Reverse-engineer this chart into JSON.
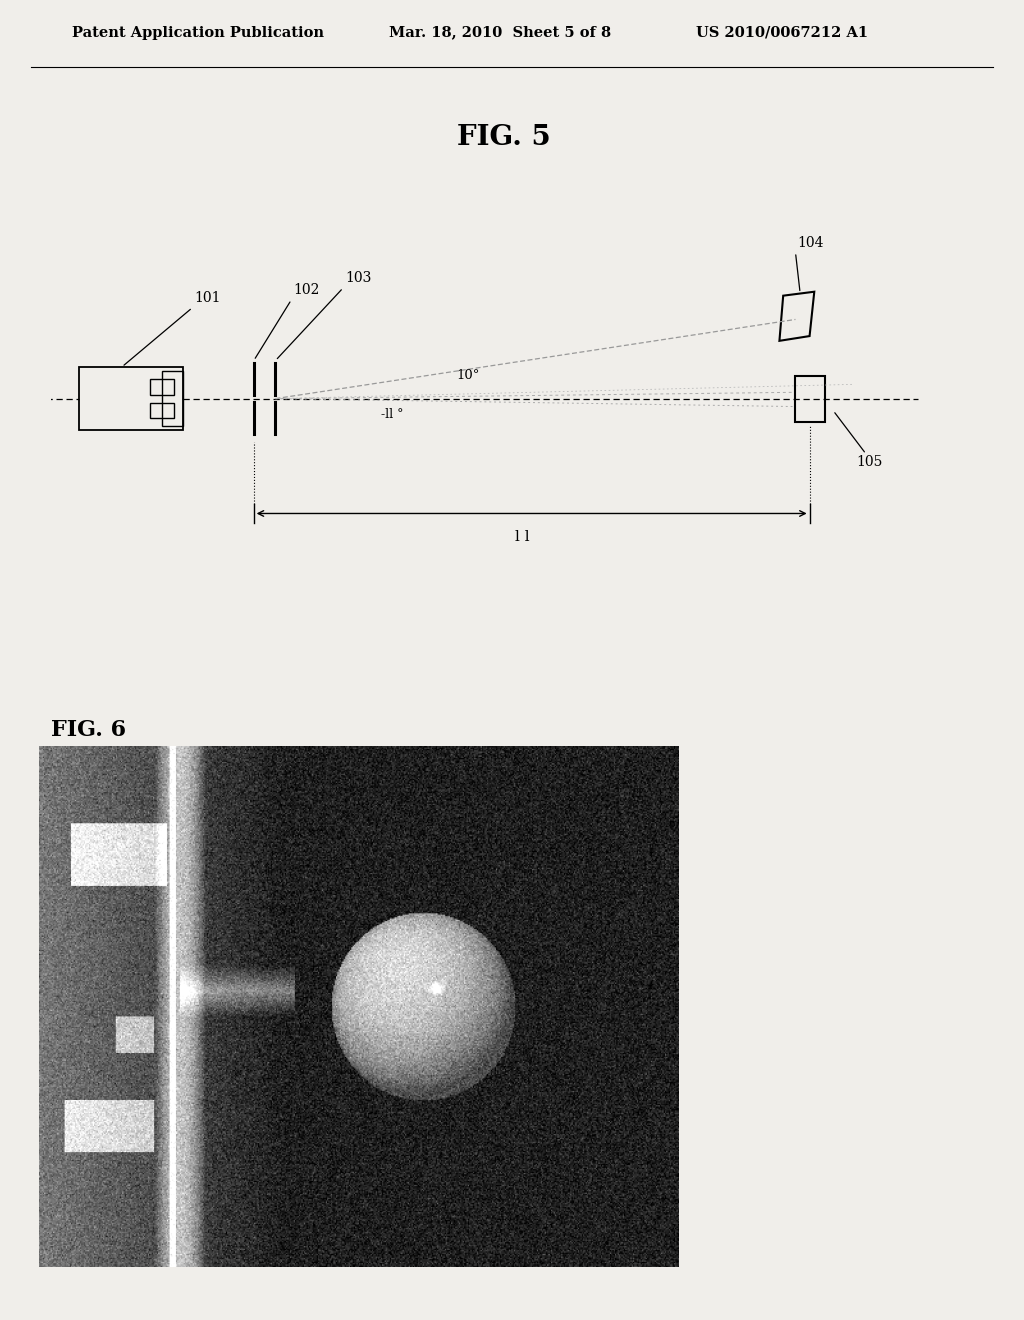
{
  "bg_color": "#f0eeea",
  "header_text_left": "Patent Application Publication",
  "header_text_mid": "Mar. 18, 2010  Sheet 5 of 8",
  "header_text_right": "US 2010/0067212 A1",
  "fig5_label": "FIG. 5",
  "fig6_label": "FIG. 6",
  "page_width": 10.24,
  "page_height": 13.2
}
